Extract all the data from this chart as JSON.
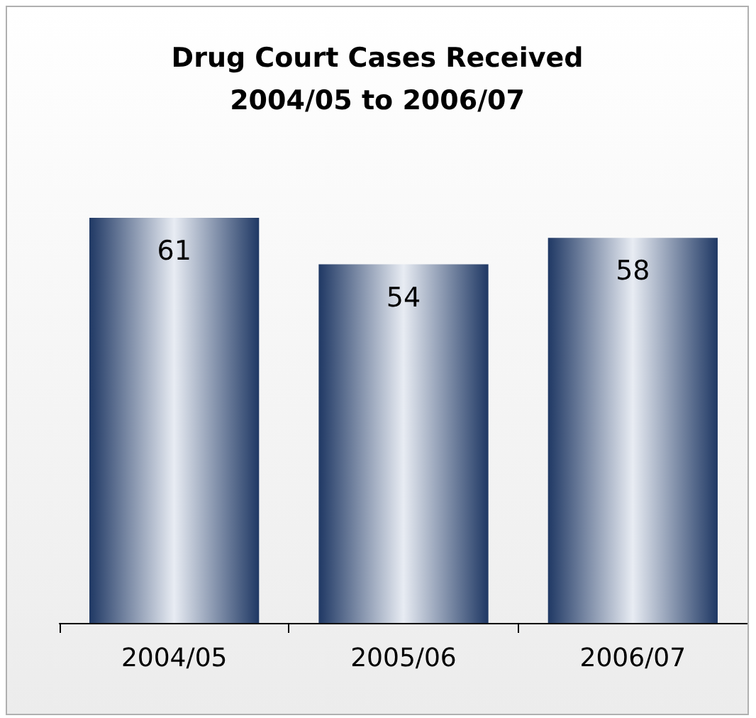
{
  "chart_data": {
    "type": "bar",
    "title": "Drug Court Cases Received\n2004/05 to 2006/07",
    "categories": [
      "2004/05",
      "2005/06",
      "2006/07"
    ],
    "values": [
      61,
      54,
      58
    ],
    "color": "#1f3864",
    "data_labels": true
  }
}
